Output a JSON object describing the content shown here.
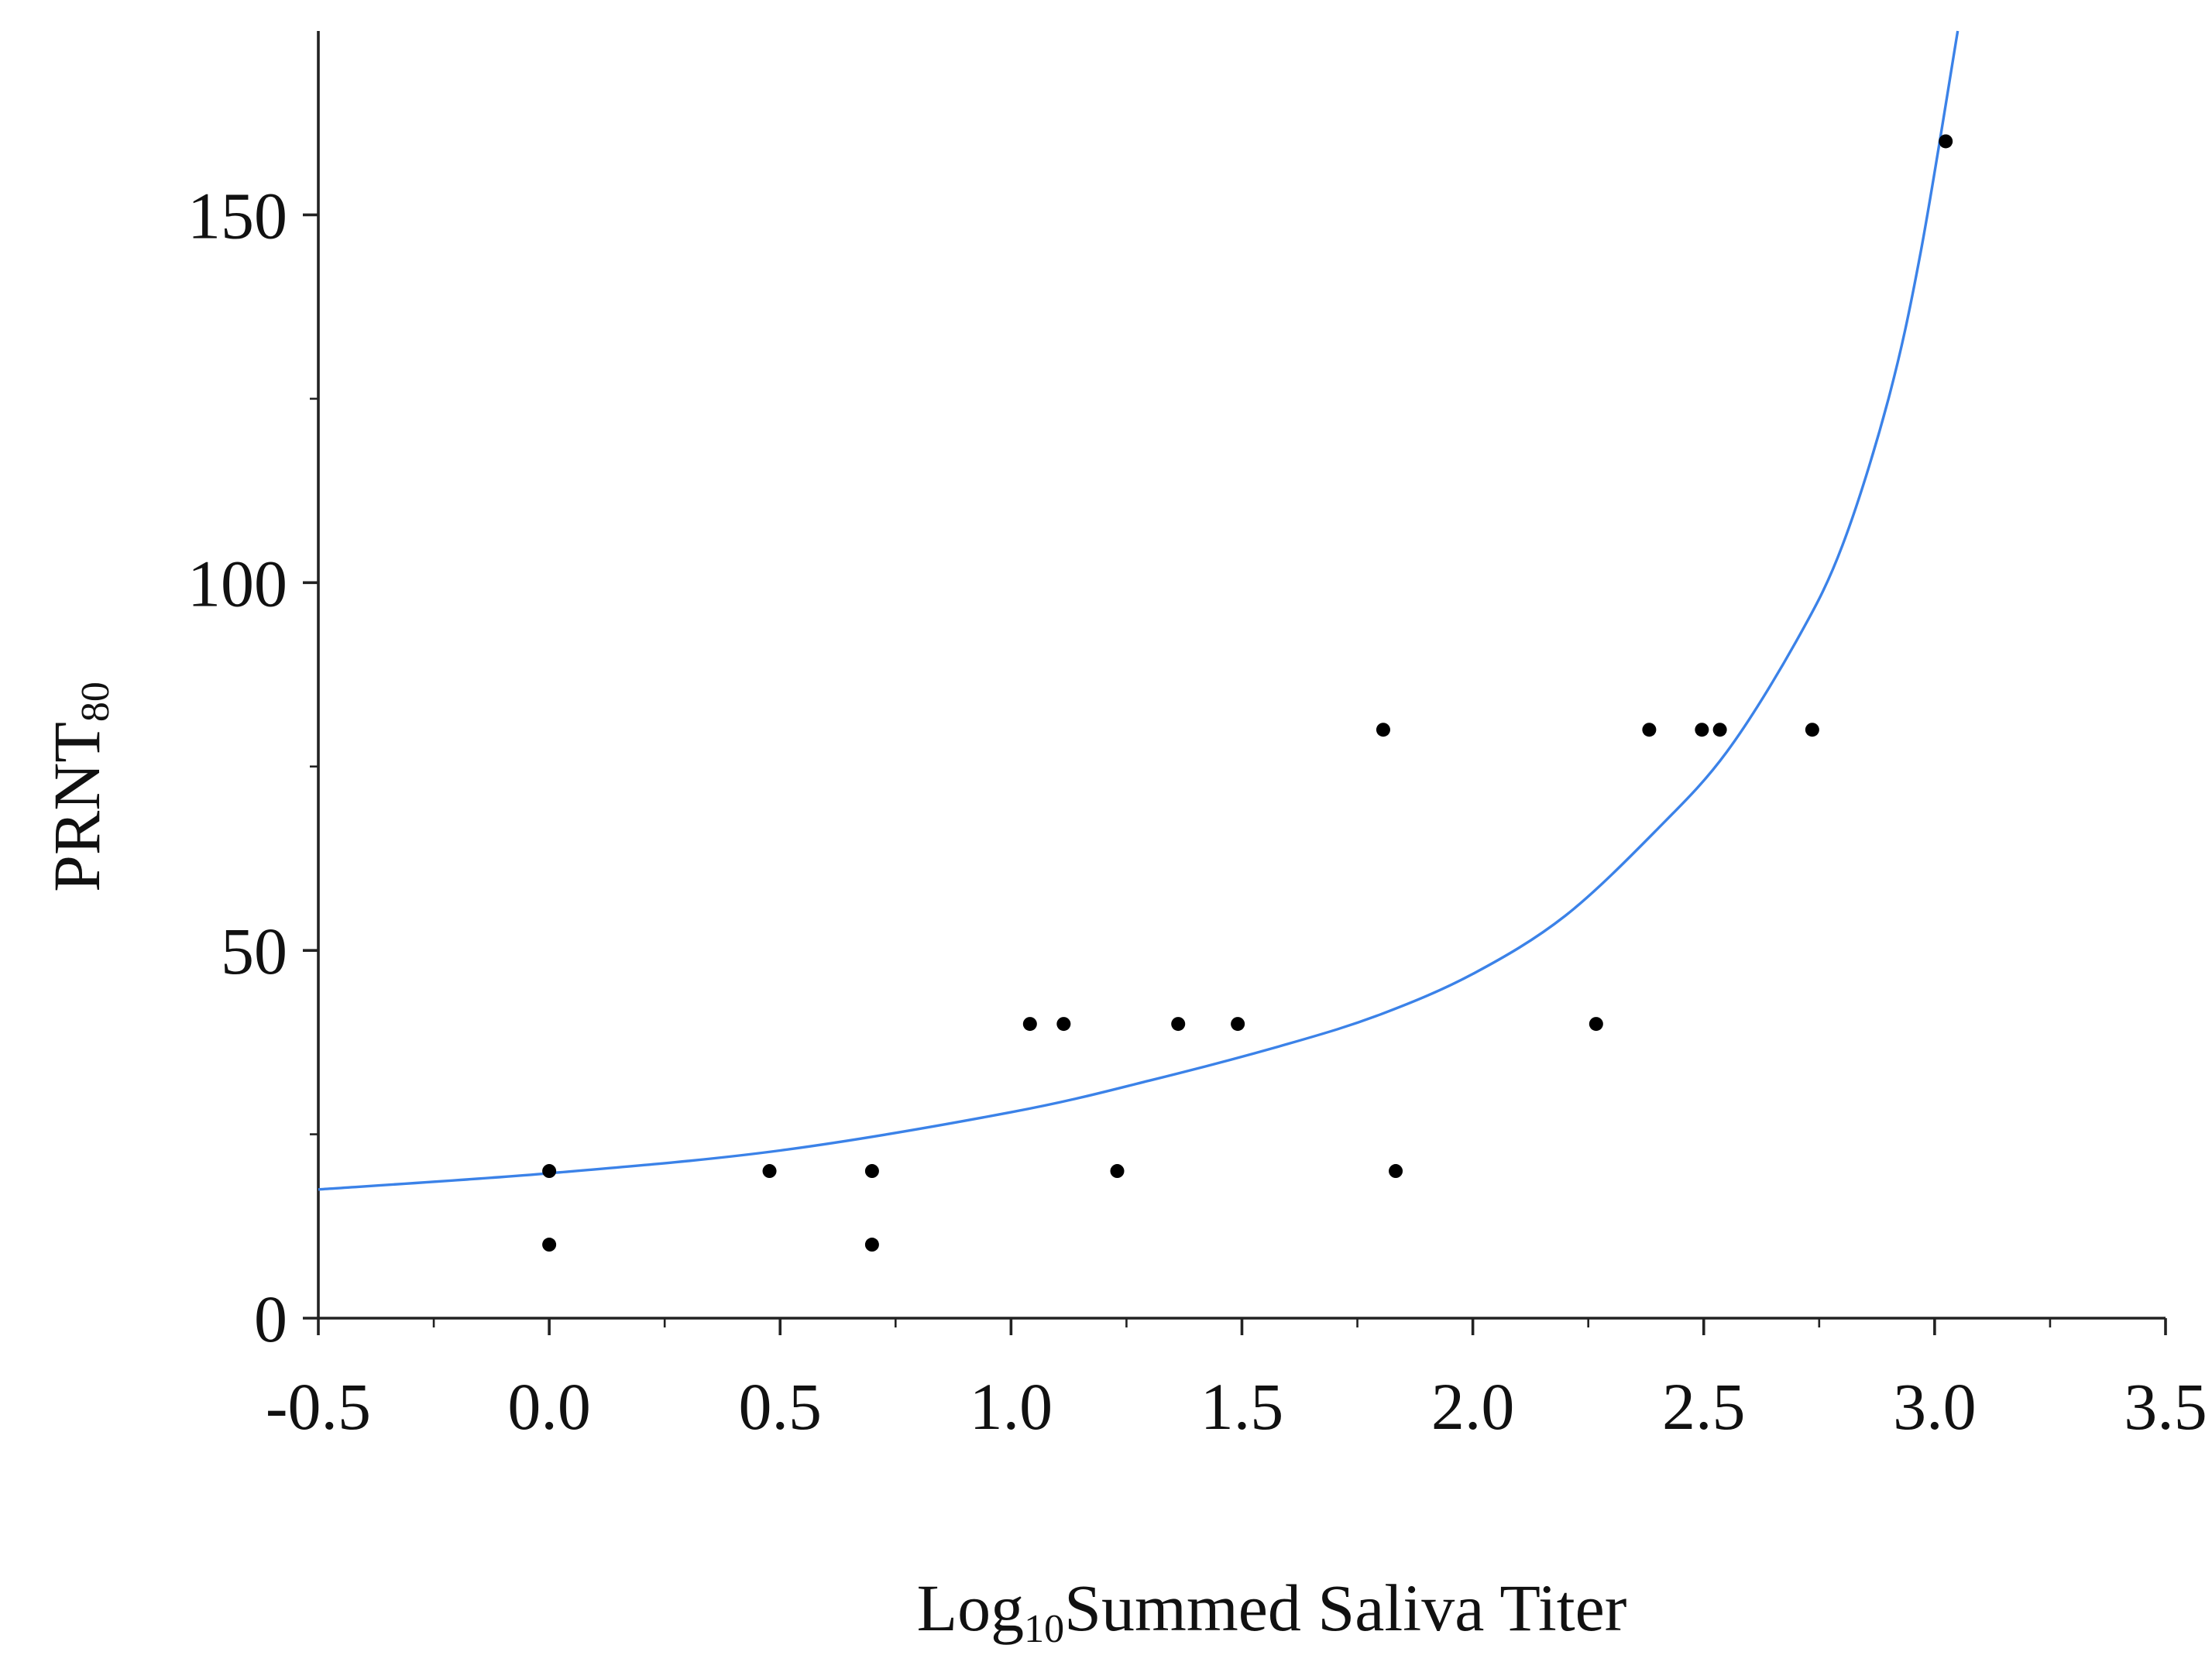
{
  "chart_data": {
    "type": "scatter",
    "xlabel": "Log",
    "xlabel_sub": "10",
    "xlabel_rest": "Summed Saliva Titer",
    "ylabel": "PRNT",
    "ylabel_sub": "80",
    "xlim": [
      -0.5,
      3.5
    ],
    "ylim": [
      0,
      175
    ],
    "x_ticks": [
      -0.5,
      0.0,
      0.5,
      1.0,
      1.5,
      2.0,
      2.5,
      3.0,
      3.5
    ],
    "x_tick_labels": [
      "-0.5",
      "0.0",
      "0.5",
      "1.0",
      "1.5",
      "2.0",
      "2.5",
      "3.0",
      "3.5"
    ],
    "y_ticks": [
      0,
      50,
      100,
      150
    ],
    "y_tick_labels": [
      "0",
      "50",
      "100",
      "150"
    ],
    "y_minor_ticks": [
      25,
      75,
      125
    ],
    "x_minor_ticks": [
      -0.25,
      0.25,
      0.75,
      1.25,
      1.75,
      2.25,
      2.75,
      3.25
    ],
    "grid": false,
    "series": [
      {
        "type": "scatter",
        "color": "#000000",
        "x": [
          0.0,
          0.0,
          0.477,
          0.699,
          0.699,
          1.041,
          1.114,
          1.23,
          1.362,
          1.491,
          1.806,
          1.833,
          2.267,
          2.382,
          2.496,
          2.535,
          2.735,
          3.024
        ],
        "y": [
          20,
          10,
          20,
          20,
          10,
          40,
          40,
          20,
          40,
          40,
          80,
          20,
          40,
          80,
          80,
          80,
          80,
          160
        ]
      },
      {
        "type": "line",
        "color": "#3b82e8",
        "x": [
          -0.5,
          0.0,
          0.5,
          1.0,
          1.3,
          1.6,
          1.8,
          2.0,
          2.2,
          2.4,
          2.55,
          2.7,
          2.8,
          2.9,
          2.97,
          3.05
        ],
        "y": [
          17.5,
          19.7,
          22.8,
          28.0,
          32.3,
          37.3,
          41.3,
          46.8,
          54.7,
          66.5,
          77.0,
          92.0,
          105.0,
          125.0,
          145.0,
          175.0
        ]
      }
    ]
  }
}
